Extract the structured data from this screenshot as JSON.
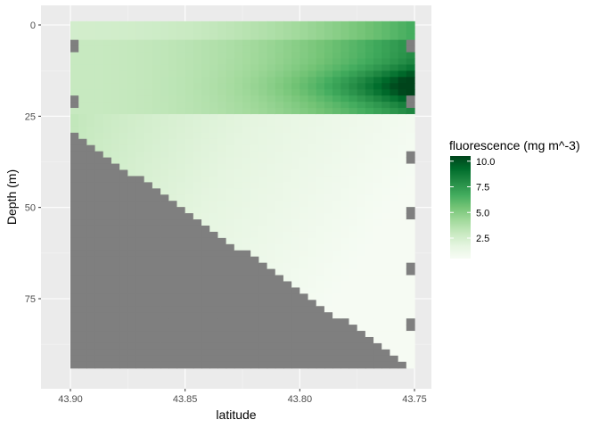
{
  "chart_data": {
    "type": "heatmap",
    "title": "",
    "xlabel": "latitude",
    "ylabel": "Depth (m)",
    "x_reversed": true,
    "y_reversed": true,
    "xlim": [
      43.75,
      43.905
    ],
    "ylim": [
      0,
      95
    ],
    "x_ticks": [
      43.9,
      43.85,
      43.8,
      43.75
    ],
    "x_tick_labels": [
      "43.90",
      "43.85",
      "43.80",
      "43.75"
    ],
    "y_ticks": [
      0,
      25,
      50,
      75
    ],
    "y_tick_labels": [
      "0",
      "25",
      "50",
      "75"
    ],
    "grid": true,
    "na_color": "#7f7f7f",
    "legend": {
      "title": "fluorescence (mg m^-3)",
      "position": "right",
      "min": 0.5,
      "max": 10.5,
      "ticks": [
        2.5,
        5.0,
        7.5,
        10.0
      ],
      "tick_labels": [
        "2.5",
        "5.0",
        "7.5",
        "10.0"
      ],
      "low_color": "#f7fcf5",
      "high_color": "#00441b"
    },
    "grid_spec": {
      "lat_start": 43.9,
      "lat_end": 43.75,
      "lat_step": 0.0036,
      "depth_start": 0,
      "depth_end": 95,
      "depth_step": 1.7
    },
    "field_description": {
      "surface_band_depth": [
        0,
        25
      ],
      "surface_band_value_west": 3.0,
      "surface_band_value_east": 8.0,
      "chlorophyll_max_depth": 17,
      "chlorophyll_max_value": 10.3,
      "deep_layer_value_west": 3.2,
      "deep_layer_value_east": 0.8,
      "bottom_depth_west": 30,
      "bottom_depth_east": 95
    }
  }
}
